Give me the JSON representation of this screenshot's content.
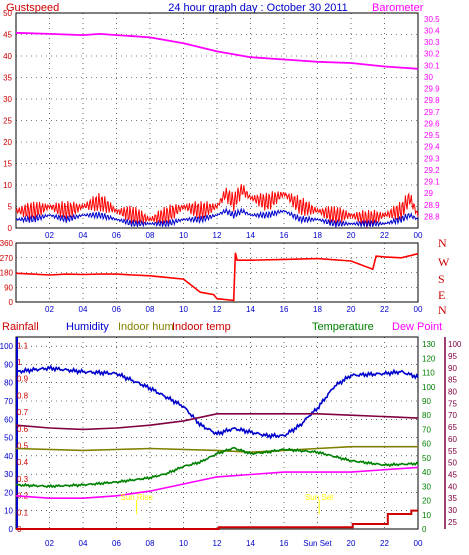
{
  "header": {
    "title": "24 hour graph day : October 30 2011",
    "left_label": "Gustspeed",
    "right_label": "Barometer"
  },
  "colors": {
    "gust": "#ff0000",
    "wind": "#0000cc",
    "barometer": "#ff00ff",
    "direction": "#ff0000",
    "rainfall": "#cc0000",
    "humidity": "#0000cc",
    "indoor_hum": "#808000",
    "indoor_temp": "#800040",
    "temperature": "#008000",
    "dew_point": "#ff00ff",
    "axis_red": "#cc0000",
    "axis_blue": "#0000cc",
    "axis_green": "#008000",
    "axis_maroon": "#800040",
    "grid": "#000000",
    "annotation": "#ffff00"
  },
  "x_ticks": [
    "02",
    "04",
    "06",
    "08",
    "10",
    "12",
    "14",
    "16",
    "18",
    "20",
    "22",
    "00"
  ],
  "x_ticks_bottom": [
    "02",
    "04",
    "06",
    "08",
    "10",
    "12",
    "14",
    "16",
    "Sun Set",
    "20",
    "22",
    "00"
  ],
  "chart_data": [
    {
      "type": "line",
      "title": "24 hour graph day : October 30 2011",
      "ylabel": "Gustspeed",
      "ylim": [
        0,
        50
      ],
      "yticks": [
        0,
        5,
        10,
        15,
        20,
        25,
        30,
        35,
        40,
        45,
        50
      ],
      "series": [
        {
          "name": "Gustspeed",
          "role": "gust",
          "x": [
            0,
            1,
            2,
            3,
            4,
            5,
            6,
            7,
            8,
            9,
            10,
            11,
            12,
            12.5,
            13,
            13.5,
            14,
            15,
            16,
            17,
            18,
            19,
            20,
            21,
            22,
            23,
            23.5,
            24
          ],
          "values": [
            4,
            4,
            5,
            4,
            5,
            6,
            4,
            3,
            2,
            3,
            5,
            4,
            5,
            8,
            6,
            9,
            7,
            6,
            8,
            5,
            4,
            3,
            3,
            2,
            3,
            4,
            7,
            3
          ]
        },
        {
          "name": "Windspeed",
          "role": "wind",
          "x": [
            0,
            1,
            2,
            3,
            4,
            5,
            6,
            7,
            8,
            9,
            10,
            11,
            12,
            12.5,
            13,
            13.5,
            14,
            15,
            16,
            17,
            18,
            19,
            20,
            21,
            22,
            23,
            23.5,
            24
          ],
          "values": [
            2,
            2,
            3,
            2,
            3,
            3,
            2,
            1,
            1,
            1,
            2,
            2,
            3,
            4,
            3,
            4,
            3,
            3,
            4,
            2,
            2,
            1,
            1,
            1,
            1,
            2,
            3,
            2
          ]
        },
        {
          "name": "Barometer",
          "role": "barometer",
          "axis": "right",
          "ylim": [
            28.7,
            30.55
          ],
          "yticks": [
            28.8,
            28.9,
            29.0,
            29.1,
            29.2,
            29.3,
            29.4,
            29.5,
            29.6,
            29.7,
            29.8,
            29.9,
            30.0,
            30.1,
            30.2,
            30.3,
            30.4,
            30.5
          ],
          "x": [
            0,
            2,
            4,
            5,
            6,
            7,
            8,
            10,
            12,
            14,
            16,
            17,
            18,
            20,
            22,
            23,
            24
          ],
          "values": [
            30.38,
            30.37,
            30.36,
            30.37,
            30.36,
            30.35,
            30.34,
            30.29,
            30.22,
            30.17,
            30.15,
            30.14,
            30.13,
            30.12,
            30.09,
            30.08,
            30.07
          ]
        }
      ]
    },
    {
      "type": "line",
      "ylim": [
        0,
        360
      ],
      "yticks": [
        0,
        90,
        180,
        270,
        360
      ],
      "direction_labels": [
        "N",
        "W",
        "S",
        "E",
        "N"
      ],
      "series": [
        {
          "name": "Wind Direction",
          "role": "direction",
          "x": [
            0,
            1,
            2,
            3,
            4,
            5,
            6,
            7,
            8,
            9,
            10,
            11,
            11.8,
            12,
            13,
            13.1,
            13.2,
            14,
            16,
            18,
            20,
            21.3,
            21.5,
            22,
            23,
            24
          ],
          "values": [
            175,
            170,
            165,
            170,
            168,
            170,
            170,
            165,
            160,
            150,
            140,
            60,
            45,
            20,
            10,
            300,
            255,
            255,
            260,
            265,
            250,
            200,
            280,
            275,
            270,
            295
          ]
        }
      ]
    },
    {
      "type": "line",
      "axes": {
        "rainfall": {
          "ylim": [
            0,
            1.15
          ],
          "yticks": [
            0,
            0.1,
            0.2,
            0.3,
            0.4,
            0.5,
            0.6,
            0.7,
            0.8,
            0.9,
            1,
            1.1
          ]
        },
        "humidity": {
          "ylim": [
            0,
            105
          ],
          "yticks": [
            0,
            10,
            20,
            30,
            40,
            50,
            60,
            70,
            80,
            90,
            100
          ]
        },
        "temperature": {
          "ylim": [
            0,
            135
          ],
          "yticks": [
            0,
            10,
            20,
            30,
            40,
            50,
            60,
            70,
            80,
            90,
            100,
            110,
            120,
            130
          ]
        },
        "dew_point": {
          "ylim": [
            22,
            103
          ],
          "yticks": [
            25,
            30,
            35,
            40,
            45,
            50,
            55,
            60,
            65,
            70,
            75,
            80,
            85,
            90,
            95,
            100
          ]
        }
      },
      "series": [
        {
          "name": "Rainfall",
          "role": "rainfall",
          "axis": "rainfall",
          "x": [
            0,
            12,
            12.1,
            20,
            20.1,
            22,
            22.2,
            23.5,
            23.6,
            24
          ],
          "values": [
            0,
            0,
            0.01,
            0.01,
            0.03,
            0.03,
            0.09,
            0.09,
            0.11,
            0.11
          ]
        },
        {
          "name": "Humidity",
          "role": "humidity",
          "axis": "humidity",
          "x": [
            0,
            2,
            4,
            6,
            8,
            9,
            10,
            11,
            12,
            13,
            14,
            15,
            16,
            17,
            17.5,
            18,
            19,
            20,
            22,
            23,
            24
          ],
          "values": [
            86,
            88,
            86,
            85,
            77,
            72,
            67,
            57,
            52,
            55,
            53,
            51,
            51,
            57,
            62,
            66,
            78,
            84,
            85,
            86,
            83
          ]
        },
        {
          "name": "Indoor hum",
          "role": "indoor_hum",
          "axis": "humidity",
          "x": [
            0,
            4,
            8,
            12,
            14,
            16,
            18,
            20,
            24
          ],
          "values": [
            44,
            43,
            44,
            43,
            42,
            43,
            44,
            45,
            45
          ]
        },
        {
          "name": "Indoor temp",
          "role": "indoor_temp",
          "axis": "temperature",
          "x": [
            0,
            2,
            4,
            6,
            8,
            10,
            12,
            14,
            16,
            18,
            20,
            22,
            24
          ],
          "values": [
            73,
            71,
            70,
            71,
            73,
            76,
            81,
            81,
            81,
            81,
            80,
            79,
            78
          ]
        },
        {
          "name": "Temperature",
          "role": "temperature",
          "axis": "temperature",
          "x": [
            0,
            2,
            4,
            6,
            8,
            9,
            10,
            11,
            12,
            13,
            14,
            15,
            16,
            18,
            20,
            22,
            24
          ],
          "values": [
            31,
            30,
            31,
            33,
            36,
            39,
            44,
            47,
            53,
            57,
            53,
            54,
            56,
            54,
            48,
            45,
            46
          ]
        },
        {
          "name": "Dew Point",
          "role": "dew_point",
          "axis": "dew_point",
          "x": [
            0,
            2,
            4,
            6,
            8,
            10,
            12,
            14,
            16,
            18,
            20,
            22,
            24
          ],
          "values": [
            36,
            35,
            35,
            36,
            38,
            41,
            44,
            45,
            46,
            46,
            46,
            47,
            48
          ]
        }
      ],
      "legend": [
        "Rainfall",
        "Humidity",
        "Indoor hum",
        "Indoor temp",
        "Temperature",
        "Dew Point"
      ],
      "annotations": [
        {
          "text": "Sun Rise",
          "x": 7.2
        },
        {
          "text": "Sun Set",
          "x": 18.1
        }
      ]
    }
  ]
}
